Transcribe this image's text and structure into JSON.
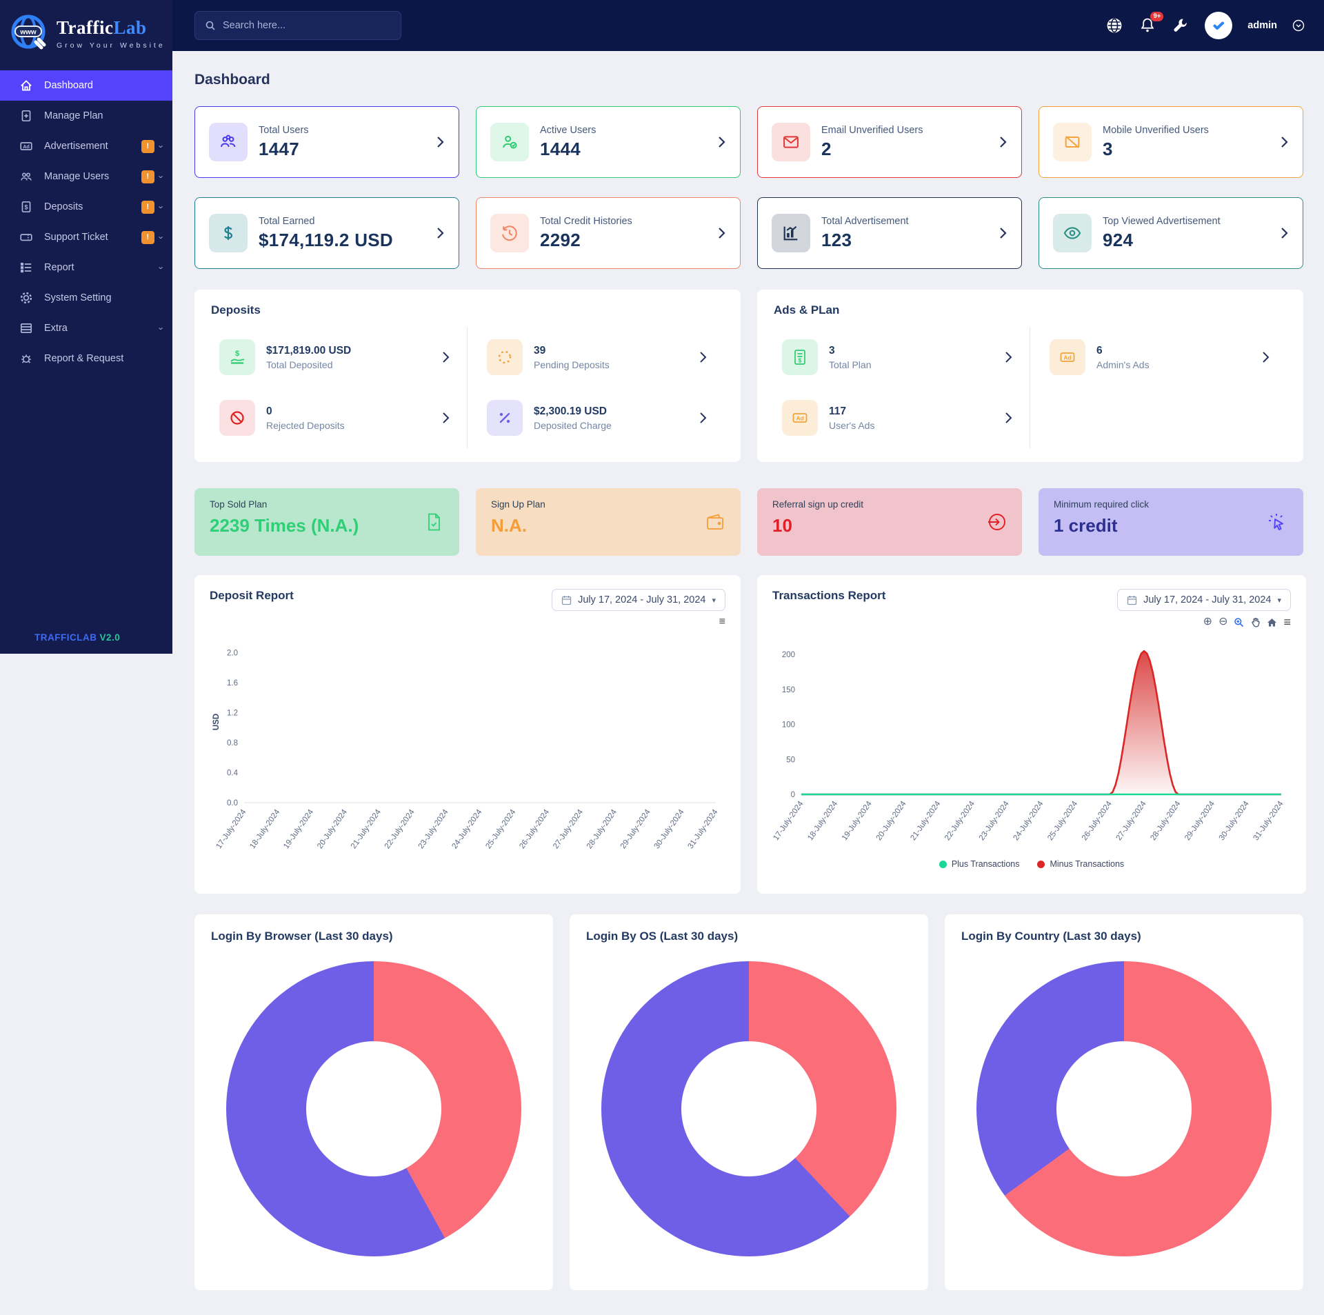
{
  "colors": {
    "indigo": "#4838eb",
    "green": "#2ecb71",
    "red": "#e23636",
    "orange": "#f2a33c",
    "teal": "#20808f",
    "salmon": "#f08767",
    "navy": "#1c3050",
    "teal2": "#2b8f85",
    "purple": "#6e5fe6",
    "badge": "#f0932f",
    "plus_green": "#19d895",
    "minus_red": "#dc2626",
    "pie_purple": "#6e5fe6",
    "pie_red": "#fb6d79",
    "active_menu": "#5443fa"
  },
  "brand": {
    "name_primary": "Traffic",
    "name_secondary": "Lab",
    "tagline": "Grow Your Website",
    "globe_label": "www",
    "version_primary": "TRAFFICLAB",
    "version_secondary": "V2.0"
  },
  "topbar": {
    "search_placeholder": "Search here...",
    "notification_count": "9+",
    "username": "admin"
  },
  "sidebar": {
    "items": [
      {
        "label": "Dashboard",
        "icon": "home-icon",
        "active": true
      },
      {
        "label": "Manage Plan",
        "icon": "plan-icon"
      },
      {
        "label": "Advertisement",
        "icon": "ad-icon",
        "badge": "!",
        "chevron": true
      },
      {
        "label": "Manage Users",
        "icon": "users-icon",
        "badge": "!",
        "chevron": true
      },
      {
        "label": "Deposits",
        "icon": "deposit-icon",
        "badge": "!",
        "chevron": true
      },
      {
        "label": "Support Ticket",
        "icon": "ticket-icon",
        "badge": "!",
        "chevron": true
      },
      {
        "label": "Report",
        "icon": "report-icon",
        "chevron": true
      },
      {
        "label": "System Setting",
        "icon": "settings-icon"
      },
      {
        "label": "Extra",
        "icon": "extra-icon",
        "chevron": true
      },
      {
        "label": "Report & Request",
        "icon": "bug-icon"
      }
    ]
  },
  "page": {
    "title": "Dashboard"
  },
  "stat_cards": [
    {
      "label": "Total Users",
      "value": "1447",
      "icon": "users-group-icon"
    },
    {
      "label": "Active Users",
      "value": "1444",
      "icon": "user-check-icon"
    },
    {
      "label": "Email Unverified Users",
      "value": "2",
      "icon": "envelope-icon"
    },
    {
      "label": "Mobile Unverified Users",
      "value": "3",
      "icon": "mobile-slash-icon"
    },
    {
      "label": "Total Earned",
      "value": "$174,119.2 USD",
      "icon": "dollar-icon"
    },
    {
      "label": "Total Credit Histories",
      "value": "2292",
      "icon": "history-icon"
    },
    {
      "label": "Total Advertisement",
      "value": "123",
      "icon": "chart-bar-icon"
    },
    {
      "label": "Top Viewed Advertisement",
      "value": "924",
      "icon": "eye-icon"
    }
  ],
  "deposits_panel": {
    "title": "Deposits",
    "items": [
      {
        "value": "$171,819.00 USD",
        "label": "Total Deposited",
        "icon": "hand-dollar-icon"
      },
      {
        "value": "39",
        "label": "Pending Deposits",
        "icon": "spinner-icon"
      },
      {
        "value": "0",
        "label": "Rejected Deposits",
        "icon": "ban-icon"
      },
      {
        "value": "$2,300.19 USD",
        "label": "Deposited Charge",
        "icon": "percent-icon"
      }
    ]
  },
  "ads_panel": {
    "title": "Ads & PLan",
    "items": [
      {
        "value": "3",
        "label": "Total Plan",
        "icon": "file-invoice-icon"
      },
      {
        "value": "6",
        "label": "Admin's Ads",
        "icon": "ad-box-icon"
      },
      {
        "value": "117",
        "label": "User's Ads",
        "icon": "ad-box-icon"
      }
    ]
  },
  "highlight_cards": [
    {
      "label": "Top Sold Plan",
      "value": "2239 Times (N.A.)",
      "icon": "document-icon"
    },
    {
      "label": "Sign Up Plan",
      "value": "N.A.",
      "icon": "wallet-icon"
    },
    {
      "label": "Referral sign up credit",
      "value": "10",
      "icon": "sign-in-icon"
    },
    {
      "label": "Minimum required click",
      "value": "1 credit",
      "icon": "click-icon"
    }
  ],
  "deposit_report": {
    "title": "Deposit Report",
    "date_range": "July 17, 2024 - July 31, 2024"
  },
  "transactions_report": {
    "title": "Transactions Report",
    "date_range": "July 17, 2024 - July 31, 2024",
    "legend": [
      "Plus Transactions",
      "Minus Transactions"
    ]
  },
  "login_panels": [
    {
      "title": "Login By Browser (Last 30 days)"
    },
    {
      "title": "Login By OS (Last 30 days)"
    },
    {
      "title": "Login By Country (Last 30 days)"
    }
  ],
  "chart_data": [
    {
      "id": "deposit_report",
      "type": "line",
      "title": "Deposit Report",
      "xlabel": "",
      "ylabel": "USD",
      "ylim": [
        0,
        2.15
      ],
      "yticks": [
        "2.0",
        "1.6",
        "1.2",
        "0.8",
        "0.4",
        "0.0"
      ],
      "grid": false,
      "categories": [
        "17-July-2024",
        "18-July-2024",
        "19-July-2024",
        "20-July-2024",
        "21-July-2024",
        "22-July-2024",
        "23-July-2024",
        "24-July-2024",
        "25-July-2024",
        "26-July-2024",
        "27-July-2024",
        "28-July-2024",
        "29-July-2024",
        "30-July-2024",
        "31-July-2024"
      ],
      "series": []
    },
    {
      "id": "transactions_report",
      "type": "area",
      "title": "Transactions Report",
      "xlabel": "",
      "ylabel": "",
      "ylim": [
        0,
        215
      ],
      "yticks": [
        "200",
        "150",
        "100",
        "50",
        "0"
      ],
      "grid": false,
      "legend_position": "bottom",
      "categories": [
        "17-July-2024",
        "18-July-2024",
        "19-July-2024",
        "20-July-2024",
        "21-July-2024",
        "22-July-2024",
        "23-July-2024",
        "24-July-2024",
        "25-July-2024",
        "26-July-2024",
        "27-July-2024",
        "28-July-2024",
        "29-July-2024",
        "30-July-2024",
        "31-July-2024"
      ],
      "series": [
        {
          "name": "Minus Transactions",
          "color": "#dc2626",
          "fill": "redFill",
          "values": [
            0,
            0,
            0,
            0,
            0,
            0,
            0,
            0,
            0,
            0,
            205,
            0,
            0,
            0,
            0
          ]
        },
        {
          "name": "Plus Transactions",
          "color": "#19d895",
          "values": [
            0,
            0,
            0,
            0,
            0,
            0,
            0,
            0,
            0,
            0,
            0,
            0,
            0,
            0,
            0
          ]
        }
      ]
    },
    {
      "id": "login_by_browser",
      "type": "pie",
      "title": "Login By Browser (Last 30 days)",
      "slices": [
        {
          "name": "segment-red",
          "value": 42,
          "color": "#fb6d79"
        },
        {
          "name": "segment-purple",
          "value": 58,
          "color": "#6e5fe6"
        }
      ]
    },
    {
      "id": "login_by_os",
      "type": "pie",
      "title": "Login By OS (Last 30 days)",
      "slices": [
        {
          "name": "segment-red",
          "value": 38,
          "color": "#fb6d79"
        },
        {
          "name": "segment-purple",
          "value": 62,
          "color": "#6e5fe6"
        }
      ]
    },
    {
      "id": "login_by_country",
      "type": "pie",
      "title": "Login By Country (Last 30 days)",
      "slices": [
        {
          "name": "segment-red",
          "value": 65,
          "color": "#fb6d79"
        },
        {
          "name": "segment-purple",
          "value": 35,
          "color": "#6e5fe6"
        }
      ]
    }
  ]
}
